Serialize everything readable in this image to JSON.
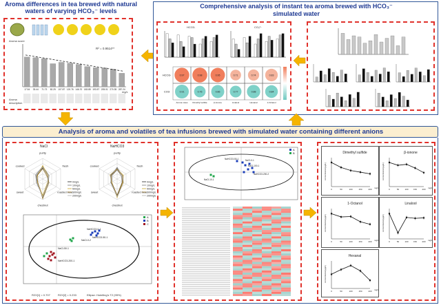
{
  "panel_top_left": {
    "title": "Aroma differences in tea brewed with natural waters of varying HCO₃⁻ levels",
    "chart_ylabel": "Aroma score",
    "r_label": "R² = 0.9514**",
    "x_unit": "mg/L",
    "row_label": "Aroma description",
    "x_ticks": [
      "17.54",
      "33.44",
      "71.73",
      "82.25",
      "107.87",
      "120.76",
      "146.70",
      "183.85",
      "193.57",
      "205.01",
      "270.35",
      "287.24"
    ],
    "values": [
      92.4,
      92.0,
      91.4,
      88.5,
      89.3,
      88.8,
      88.0,
      86.8,
      86.2,
      86.0,
      85.3,
      82.9
    ],
    "ylim": [
      75,
      100
    ]
  },
  "panel_top_right": {
    "title_line1": "Comprehensive analysis of instant tea aroma brewed with HCO₃⁻",
    "title_line2": "simulated water",
    "chart1_title": "HCO3-",
    "chart2_title": "CO₃²⁻",
    "corr_rows": [
      "HCO3-",
      "CO3"
    ],
    "corr_cols": [
      "Aroma notes",
      "Dimethyl sulfide",
      "β-Ionone",
      "Linalool",
      "Hexanal",
      "1-Octanol"
    ],
    "corr_values": [
      [
        0.97,
        0.98,
        0.95,
        0.71,
        0.74,
        0.83
      ],
      [
        0.91,
        0.76,
        0.86,
        0.77,
        0.88,
        0.84
      ]
    ]
  },
  "banner": {
    "text": "Analysis of aroma and volatiles of tea infusions brewed with simulated water containing different anions"
  },
  "panel_bottom_left": {
    "radar1_title": "NaCl",
    "radar2_title": "NaHCO3",
    "radar_axes": [
      "purity",
      "fresh",
      "roasted bean",
      "chestnut",
      "sweet",
      "cooked"
    ],
    "legend": [
      "0mg/L",
      "10mg/L",
      "50mg/L",
      "100mg/L",
      "200mg/L"
    ],
    "pca_r2x1": "R2X[1] = 0.707",
    "pca_r2x2": "R2X[2] = 0.233",
    "pca_ellipse": "Ellipse: Hotelling's T2 (95%)",
    "pca_groups": [
      "A",
      "B",
      "C"
    ],
    "pca_point_labels": [
      "NaHCO3-0-1",
      "NaCl-0-2",
      "NaCl-50-1",
      "NaHCO3-50-1",
      "NaHCO3-200-1"
    ]
  },
  "panel_bottom_middle": {
    "legend_groups": [
      "A",
      "B"
    ],
    "point_labels": [
      "NaHCO3-50-1",
      "NaCl-0-1",
      "NaCl-100-1",
      "NaHCO3-200-2",
      "NaCl-10-1"
    ],
    "heatmap_rows": 42,
    "heatmap_cols": 6
  },
  "panel_bottom_right": {
    "charts": [
      {
        "title": "Dimethyl sulfide",
        "ylabel": "concentration(μg/L)",
        "unit": "mg/L",
        "x": [
          0,
          50,
          100,
          150,
          200
        ],
        "y": [
          10.2,
          8.1,
          6.8,
          6.1,
          5.4
        ]
      },
      {
        "title": "β-ionone",
        "ylabel": "concentration(μg/L)",
        "unit": "mg/L",
        "x": [
          0,
          50,
          100,
          150,
          200
        ],
        "y": [
          2.6,
          2.3,
          2.4,
          2.0,
          1.5
        ]
      },
      {
        "title": "1-Octanol",
        "ylabel": "concentration(μg/L)",
        "unit": "mg/L",
        "x": [
          0,
          50,
          100,
          150,
          200
        ],
        "y": [
          6.2,
          5.4,
          5.5,
          4.2,
          3.6
        ]
      },
      {
        "title": "Linalool",
        "ylabel": "concentration(μg/L)",
        "unit": "mg/L",
        "x": [
          0,
          50,
          100,
          150,
          200
        ],
        "y": [
          5.4,
          1.3,
          4.6,
          4.4,
          4.5
        ]
      },
      {
        "title": "Hexanal",
        "ylabel": "concentration(μg/L)",
        "unit": "mg/L",
        "x": [
          0,
          50,
          100,
          150,
          200
        ],
        "y": [
          2.1,
          2.8,
          3.4,
          2.6,
          1.2
        ]
      }
    ],
    "x_ticks": [
      "0",
      "50",
      "100",
      "150",
      "200"
    ]
  },
  "colors": {
    "title_blue": "#1f3a93",
    "dash_red": "#e0302a",
    "arrow_yellow": "#f5b400",
    "banner_bg": "#fbeed0",
    "frame_blue": "#2f5597"
  }
}
